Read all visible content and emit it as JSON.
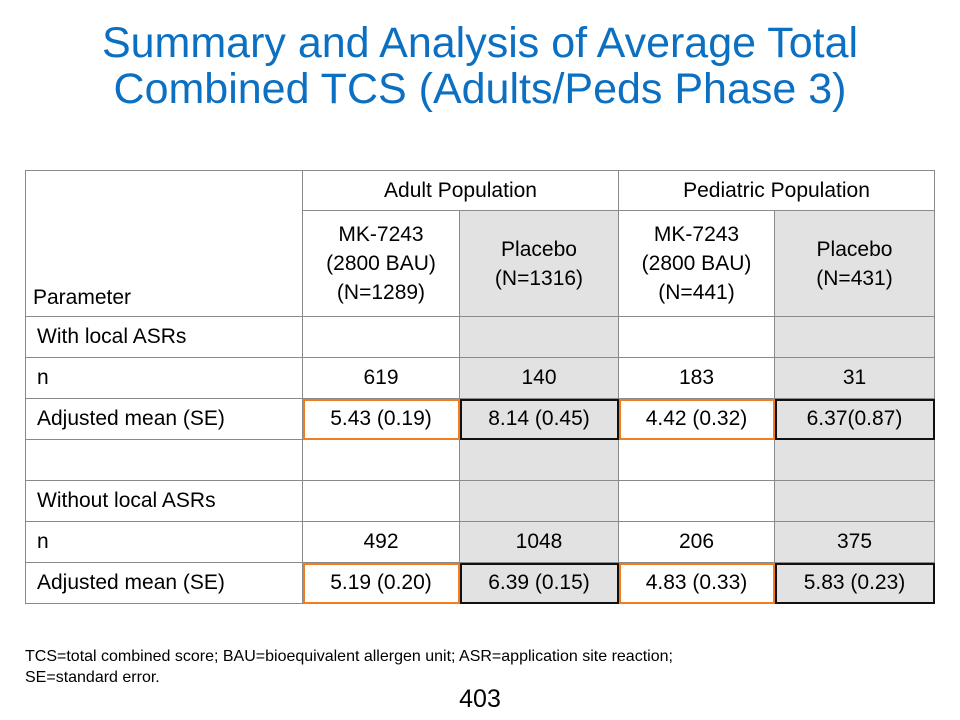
{
  "title": {
    "line1": "Summary and Analysis of Average Total",
    "line2": "Combined TCS (Adults/Peds Phase 3)"
  },
  "table": {
    "parameter_header": "Parameter",
    "groups": [
      "Adult Population",
      "Pediatric Population"
    ],
    "columns": [
      {
        "line1": "MK-7243",
        "line2": "(2800 BAU)",
        "line3": "(N=1289)"
      },
      {
        "line1": "Placebo",
        "line2": "(N=1316)"
      },
      {
        "line1": "MK-7243",
        "line2": "(2800 BAU)",
        "line3": "(N=441)"
      },
      {
        "line1": "Placebo",
        "line2": "(N=431)"
      }
    ],
    "rows": [
      {
        "label": "With local ASRs",
        "cells": [
          "",
          "",
          "",
          ""
        ]
      },
      {
        "label": "n",
        "cells": [
          "619",
          "140",
          "183",
          "31"
        ]
      },
      {
        "label": "Adjusted mean (SE)",
        "cells": [
          "5.43 (0.19)",
          "8.14 (0.45)",
          "4.42 (0.32)",
          "6.37(0.87)"
        ]
      },
      {
        "label": "",
        "cells": [
          "",
          "",
          "",
          ""
        ]
      },
      {
        "label": "Without local ASRs",
        "cells": [
          "",
          "",
          "",
          ""
        ]
      },
      {
        "label": "n",
        "cells": [
          "492",
          "1048",
          "206",
          "375"
        ]
      },
      {
        "label": "Adjusted mean (SE)",
        "cells": [
          "5.19 (0.20)",
          "6.39 (0.15)",
          "4.83 (0.33)",
          "5.83 (0.23)"
        ]
      }
    ]
  },
  "footnote": {
    "line1": "TCS=total combined score; BAU=bioequivalent allergen unit; ASR=application site reaction;",
    "line2": "SE=standard error."
  },
  "page_number": "403",
  "colors": {
    "title": "#0b6fc2",
    "header_rule": "#2e6fb8",
    "highlight_active": "#ef7d22",
    "highlight_placebo": "#111111",
    "shaded_column": "#e2e2e2"
  }
}
